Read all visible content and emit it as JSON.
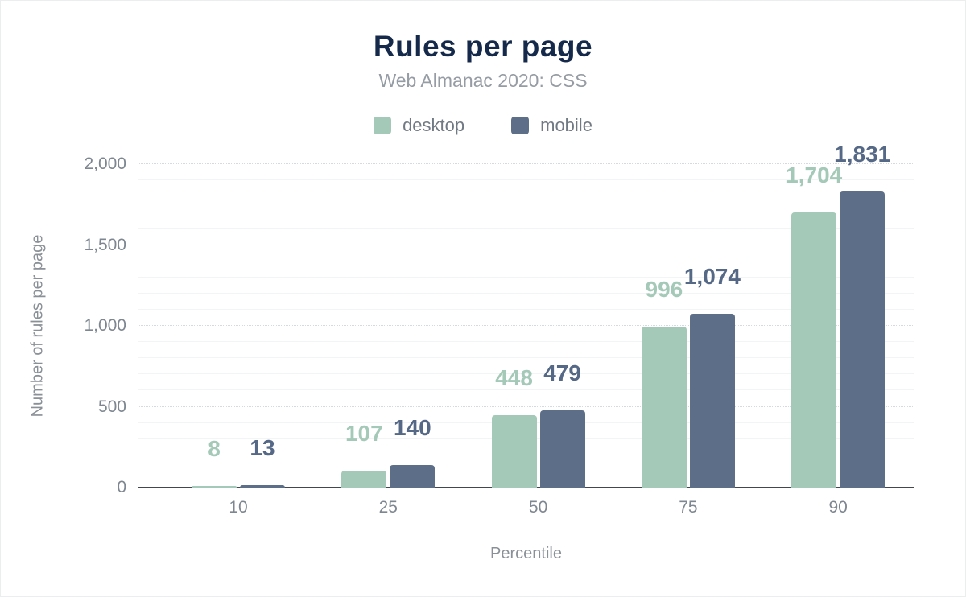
{
  "title": "Rules per page",
  "subtitle": "Web Almanac 2020: CSS",
  "legend": {
    "items": [
      {
        "label": "desktop",
        "color": "#a5c9b8"
      },
      {
        "label": "mobile",
        "color": "#5d6f88"
      }
    ]
  },
  "chart_data": {
    "type": "bar",
    "title": "Rules per page",
    "subtitle": "Web Almanac 2020: CSS",
    "xlabel": "Percentile",
    "ylabel": "Number of rules per page",
    "categories": [
      "10",
      "25",
      "50",
      "75",
      "90"
    ],
    "series": [
      {
        "name": "desktop",
        "color": "#a5c9b8",
        "label_color": "#a5c9b8",
        "values": [
          8,
          107,
          448,
          996,
          1704
        ],
        "labels": [
          "8",
          "107",
          "448",
          "996",
          "1,704"
        ]
      },
      {
        "name": "mobile",
        "color": "#5d6f88",
        "label_color": "#556886",
        "values": [
          13,
          140,
          479,
          1074,
          1831
        ],
        "labels": [
          "13",
          "140",
          "479",
          "1,074",
          "1,831"
        ]
      }
    ],
    "ylim": [
      0,
      2000
    ],
    "yticks": [
      0,
      500,
      1000,
      1500,
      2000
    ],
    "ytick_labels": [
      "0",
      "500",
      "1,000",
      "1,500",
      "2,000"
    ],
    "minor_grid_step": 100,
    "major_grid_step": 500,
    "grid": "horizontal",
    "legend_position": "top"
  }
}
